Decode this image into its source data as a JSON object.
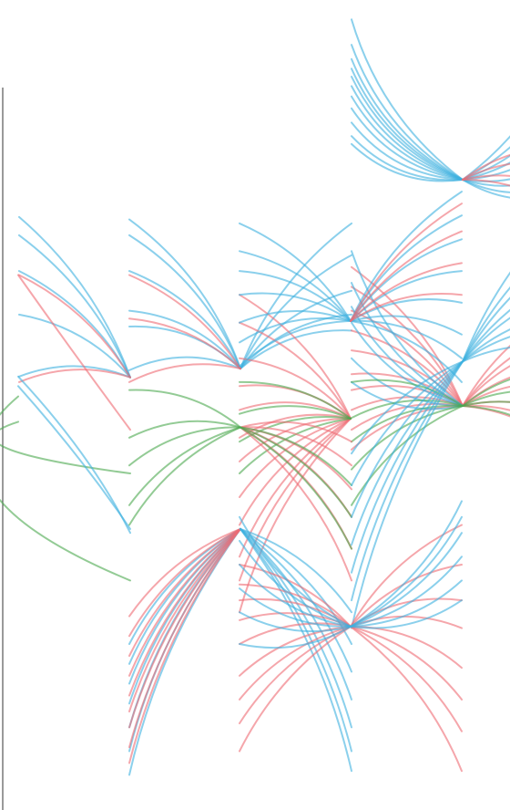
{
  "diagram": {
    "type": "arc-link-diagram",
    "colors": {
      "blue": "#3eb1df",
      "red": "#ef6b73",
      "green": "#4ba84f"
    },
    "link_opacity": 0.6,
    "columns": [
      "col1",
      "col2",
      "col3",
      "col4",
      "col5"
    ],
    "hubs": [
      {
        "id": "a",
        "col": 4,
        "row": 0.215
      },
      {
        "id": "b",
        "col": 2,
        "row": 0.453
      },
      {
        "id": "c",
        "col": 4,
        "row": 0.5
      },
      {
        "id": "d",
        "col": 3,
        "row": 0.516
      },
      {
        "id": "e",
        "col": 1,
        "row": 0.464
      },
      {
        "id": "f",
        "col": 3,
        "row": 0.393
      },
      {
        "id": "g",
        "col": 2,
        "row": 0.527
      },
      {
        "id": "h",
        "col": 2,
        "row": 0.655
      },
      {
        "id": "i",
        "col": 4,
        "row": 0.444
      },
      {
        "id": "j",
        "col": 3,
        "row": 0.778
      }
    ],
    "fans": [
      {
        "hub": "a",
        "color": "blue",
        "side": "L",
        "rows": [
          0.013,
          0.045,
          0.063,
          0.075,
          0.085,
          0.097,
          0.11,
          0.125,
          0.143,
          0.16,
          0.17
        ],
        "bow": -38
      },
      {
        "hub": "a",
        "color": "blue",
        "side": "R",
        "rows": [
          0.02,
          0.063,
          0.095,
          0.12,
          0.145,
          0.175,
          0.195,
          0.215,
          0.23
        ],
        "bow": 36
      },
      {
        "hub": "a",
        "color": "red",
        "side": "R",
        "rows": [
          0.175,
          0.2,
          0.235,
          0.265
        ],
        "bow": -30
      },
      {
        "hub": "b",
        "color": "blue",
        "side": "L",
        "rows": [
          0.265,
          0.285,
          0.33,
          0.38,
          0.4,
          0.455
        ],
        "bow": 34
      },
      {
        "hub": "b",
        "color": "blue",
        "side": "R",
        "rows": [
          0.27,
          0.31,
          0.355,
          0.385,
          0.405
        ],
        "bow": -32
      },
      {
        "hub": "b",
        "color": "red",
        "side": "L",
        "rows": [
          0.335,
          0.39,
          0.47
        ],
        "bow": 28
      },
      {
        "hub": "c",
        "color": "red",
        "side": "L",
        "rows": [
          0.325,
          0.35,
          0.38,
          0.405,
          0.43,
          0.46,
          0.48,
          0.505,
          0.53,
          0.555
        ],
        "bow": 30
      },
      {
        "hub": "c",
        "color": "red",
        "side": "R",
        "rows": [
          0.37,
          0.4,
          0.42,
          0.45,
          0.475,
          0.52,
          0.545,
          0.565
        ],
        "bow": -30
      },
      {
        "hub": "c",
        "color": "blue",
        "side": "L",
        "rows": [
          0.305,
          0.345,
          0.375,
          0.395,
          0.44,
          0.47
        ],
        "bow": -34
      },
      {
        "hub": "c",
        "color": "green",
        "side": "L",
        "rows": [
          0.47,
          0.515,
          0.545,
          0.58,
          0.625
        ],
        "bow": 30
      },
      {
        "hub": "c",
        "color": "green",
        "side": "R",
        "rows": [
          0.455,
          0.49,
          0.52,
          0.56
        ],
        "bow": -30
      },
      {
        "hub": "e",
        "color": "blue",
        "side": "L",
        "rows": [
          0.262,
          0.285,
          0.33,
          0.385,
          0.463
        ],
        "bow": 30
      },
      {
        "hub": "e",
        "color": "red",
        "side": "L",
        "rows": [
          0.335,
          0.47
        ],
        "bow": 28
      },
      {
        "hub": "d",
        "color": "red",
        "side": "L",
        "rows": [
          0.36,
          0.395,
          0.44,
          0.475,
          0.505,
          0.54,
          0.57,
          0.615,
          0.65,
          0.69,
          0.72,
          0.76
        ],
        "bow": 32
      },
      {
        "hub": "d",
        "color": "green",
        "side": "L",
        "rows": [
          0.47,
          0.51,
          0.545,
          0.585
        ],
        "bow": 28
      },
      {
        "hub": "f",
        "color": "blue",
        "side": "L",
        "rows": [
          0.27,
          0.305,
          0.33,
          0.36,
          0.395,
          0.42,
          0.45
        ],
        "bow": 30
      },
      {
        "hub": "f",
        "color": "blue",
        "side": "R",
        "rows": [
          0.23,
          0.26,
          0.29,
          0.33,
          0.37,
          0.41,
          0.44,
          0.47
        ],
        "bow": -30
      },
      {
        "hub": "f",
        "color": "red",
        "side": "R",
        "rows": [
          0.245,
          0.28,
          0.32,
          0.36
        ],
        "bow": -28
      },
      {
        "hub": "g",
        "color": "red",
        "side": "R",
        "rows": [
          0.545,
          0.575,
          0.605,
          0.64,
          0.68,
          0.72
        ],
        "bow": -32
      },
      {
        "hub": "g",
        "color": "green",
        "side": "L",
        "rows": [
          0.48,
          0.54,
          0.575,
          0.625,
          0.65
        ],
        "bow": 30
      },
      {
        "hub": "g",
        "color": "green",
        "side": "R",
        "rows": [
          0.6,
          0.64,
          0.68
        ],
        "bow": -30
      },
      {
        "hub": "h",
        "color": "blue",
        "side": "L",
        "rows": [
          0.8,
          0.825,
          0.85,
          0.875,
          0.905,
          0.935,
          0.965
        ],
        "bow": 30
      },
      {
        "hub": "h",
        "color": "red",
        "side": "L",
        "rows": [
          0.765,
          0.79,
          0.815,
          0.84,
          0.865,
          0.885,
          0.905,
          0.93,
          0.95
        ],
        "bow": 28
      },
      {
        "hub": "h",
        "color": "blue",
        "side": "R",
        "rows": [
          0.76,
          0.8,
          0.835,
          0.87,
          0.905,
          0.935,
          0.96
        ],
        "bow": -30
      },
      {
        "hub": "i",
        "color": "blue",
        "side": "L",
        "rows": [
          0.56,
          0.6,
          0.64,
          0.675,
          0.71,
          0.745,
          0.78
        ],
        "bow": 28
      },
      {
        "hub": "i",
        "color": "blue",
        "side": "R",
        "rows": [
          0.24,
          0.275,
          0.3,
          0.33,
          0.35,
          0.38,
          0.4,
          0.43
        ],
        "bow": -26
      },
      {
        "hub": "j",
        "color": "red",
        "side": "L",
        "rows": [
          0.7,
          0.725,
          0.745,
          0.77,
          0.8,
          0.84,
          0.87,
          0.9,
          0.935
        ],
        "bow": 28
      },
      {
        "hub": "j",
        "color": "red",
        "side": "R",
        "rows": [
          0.65,
          0.7,
          0.745,
          0.78,
          0.83,
          0.87,
          0.91,
          0.96
        ],
        "bow": -30
      },
      {
        "hub": "j",
        "color": "blue",
        "side": "L",
        "rows": [
          0.64,
          0.67,
          0.7,
          0.73,
          0.76,
          0.8
        ],
        "bow": -30
      },
      {
        "hub": "j",
        "color": "blue",
        "side": "R",
        "rows": [
          0.62,
          0.64,
          0.66,
          0.69,
          0.72,
          0.745
        ],
        "bow": 30
      }
    ],
    "loops": [
      {
        "col": 0,
        "color": "green",
        "from_row": 0.52,
        "to_row": 0.585,
        "bow": -90
      },
      {
        "col": 0,
        "color": "green",
        "from_row": 0.488,
        "to_row": 0.72,
        "bow": -120
      },
      {
        "col": 0,
        "color": "blue",
        "from_row": 0.463,
        "to_row": 0.66,
        "bow": 80
      },
      {
        "col": 0,
        "color": "blue",
        "from_row": 0.475,
        "to_row": 0.655,
        "bow": 70
      },
      {
        "col": 0,
        "color": "red",
        "from_row": 0.335,
        "to_row": 0.53,
        "bow": 60
      }
    ]
  }
}
